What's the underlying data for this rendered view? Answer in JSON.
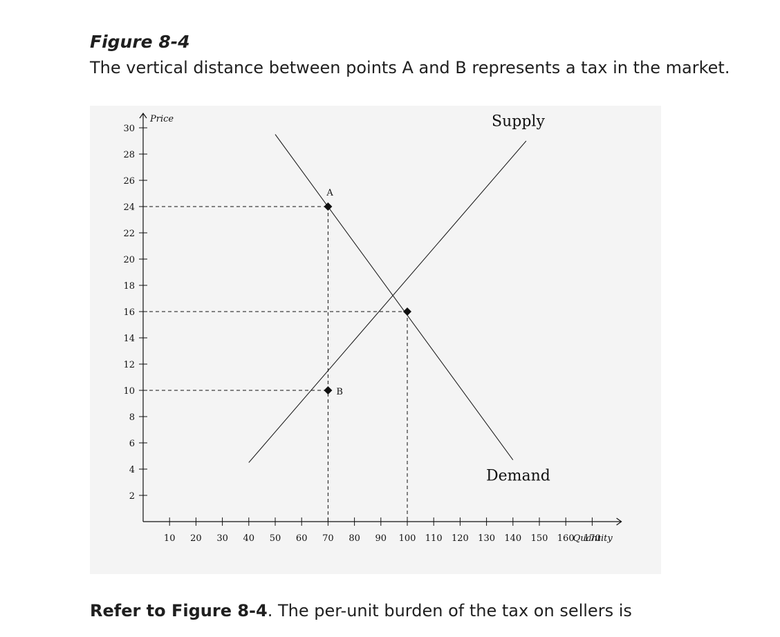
{
  "figure": {
    "title": "Figure 8-4",
    "caption": "The vertical distance between points A and B represents a tax in the market."
  },
  "question": {
    "ref": "Refer to Figure 8-4",
    "text": ". The per-unit burden of the tax on sellers is"
  },
  "chart_data": {
    "type": "line",
    "xlabel": "Quantity",
    "ylabel": "Price",
    "xlim": [
      0,
      180
    ],
    "ylim": [
      0,
      31
    ],
    "xticks": [
      10,
      20,
      30,
      40,
      50,
      60,
      70,
      80,
      90,
      100,
      110,
      120,
      130,
      140,
      150,
      160,
      170
    ],
    "yticks": [
      2,
      4,
      6,
      8,
      10,
      12,
      14,
      16,
      18,
      20,
      22,
      24,
      26,
      28,
      30
    ],
    "series": [
      {
        "name": "Demand",
        "x": [
          50,
          140
        ],
        "y": [
          29.5,
          4.7
        ]
      },
      {
        "name": "Supply",
        "x": [
          40,
          145
        ],
        "y": [
          4.5,
          29
        ]
      }
    ],
    "points": [
      {
        "label": "A",
        "x": 70,
        "y": 24
      },
      {
        "label": "B",
        "x": 70,
        "y": 10
      },
      {
        "label": "",
        "x": 100,
        "y": 16
      }
    ],
    "dashed_y": [
      {
        "y": 24,
        "x_to": 70
      },
      {
        "y": 16,
        "x_to": 100
      },
      {
        "y": 10,
        "x_to": 70
      }
    ],
    "dashed_x": [
      {
        "x": 70,
        "y_to": 24
      },
      {
        "x": 100,
        "y_to": 16
      }
    ],
    "grid": false,
    "legend": "none"
  }
}
